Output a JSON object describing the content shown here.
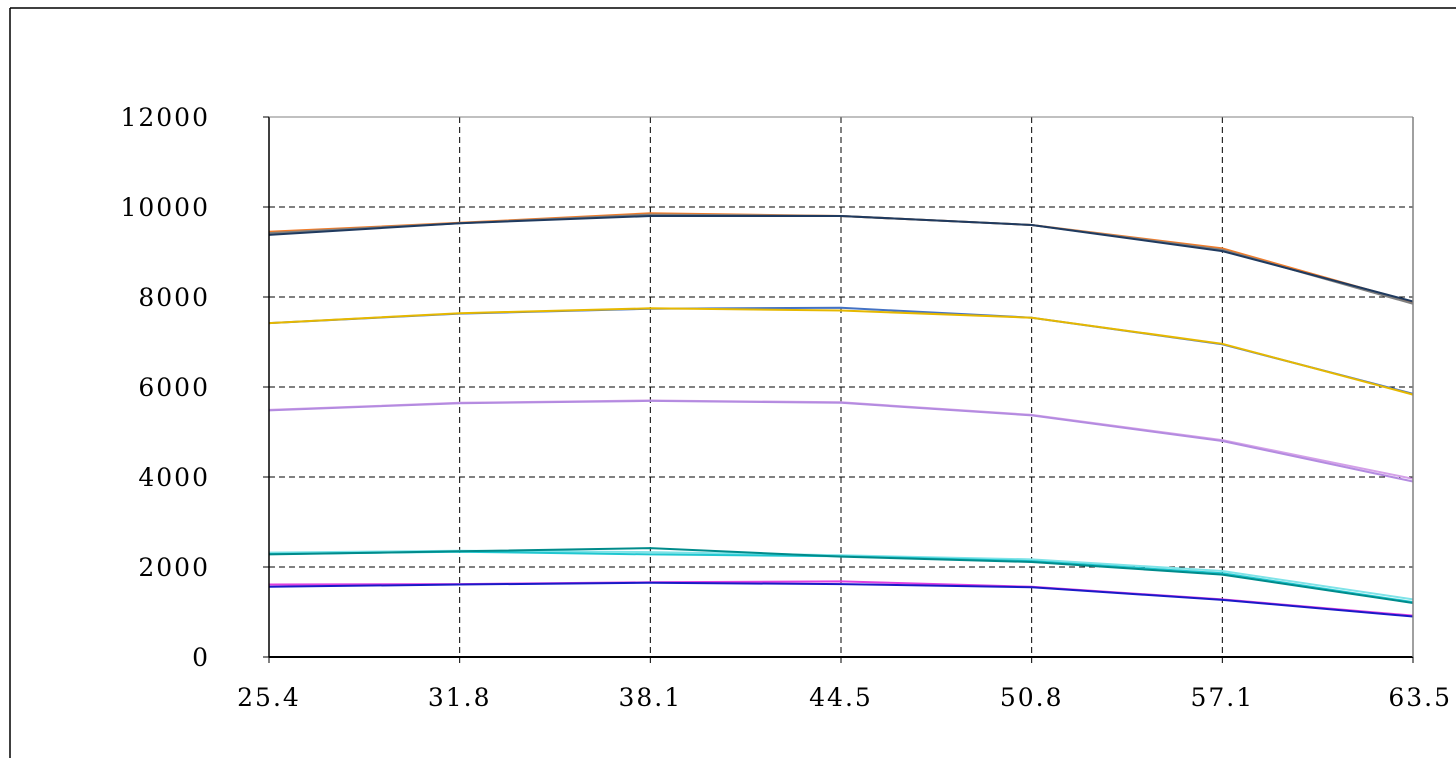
{
  "chart_data": {
    "type": "line",
    "title": "",
    "xlabel": "",
    "ylabel": "",
    "x": [
      25.4,
      31.8,
      38.1,
      44.5,
      50.8,
      57.1,
      63.5
    ],
    "x_tick_labels": [
      "25.4",
      "31.8",
      "38.1",
      "44.5",
      "50.8",
      "57.1",
      "63.5"
    ],
    "ylim": [
      0,
      12000
    ],
    "y_ticks": [
      0,
      2000,
      4000,
      6000,
      8000,
      10000,
      12000
    ],
    "y_tick_labels": [
      "0",
      "2000",
      "4000",
      "6000",
      "8000",
      "10000",
      "12000"
    ],
    "grid": true,
    "legend": "none",
    "series": [
      {
        "color": "#F07C2A",
        "values": [
          9450,
          9650,
          9860,
          9800,
          9600,
          9080,
          7880
        ]
      },
      {
        "color": "#808080",
        "values": [
          9420,
          9640,
          9830,
          9800,
          9600,
          9050,
          7850
        ]
      },
      {
        "color": "#1F3A5F",
        "values": [
          9380,
          9640,
          9800,
          9800,
          9600,
          9020,
          7900
        ]
      },
      {
        "color": "#4472C4",
        "values": [
          7420,
          7630,
          7740,
          7760,
          7540,
          6950,
          5850
        ]
      },
      {
        "color": "#E6B800",
        "values": [
          7420,
          7640,
          7750,
          7700,
          7540,
          6960,
          5830
        ]
      },
      {
        "color": "#D4A0E8",
        "values": [
          5490,
          5650,
          5700,
          5660,
          5380,
          4820,
          3960
        ]
      },
      {
        "color": "#B38BE0",
        "values": [
          5480,
          5640,
          5690,
          5650,
          5370,
          4800,
          3900
        ]
      },
      {
        "color": "#7FE3E8",
        "values": [
          2320,
          2360,
          2330,
          2260,
          2170,
          1910,
          1280
        ]
      },
      {
        "color": "#20C7D0",
        "values": [
          2290,
          2340,
          2280,
          2240,
          2130,
          1860,
          1220
        ]
      },
      {
        "color": "#008B8B",
        "values": [
          2280,
          2350,
          2420,
          2230,
          2110,
          1830,
          1200
        ]
      },
      {
        "color": "#E040E0",
        "values": [
          1610,
          1620,
          1660,
          1680,
          1560,
          1280,
          920
        ]
      },
      {
        "color": "#1A1AC8",
        "values": [
          1560,
          1610,
          1650,
          1620,
          1550,
          1270,
          900
        ]
      }
    ]
  }
}
